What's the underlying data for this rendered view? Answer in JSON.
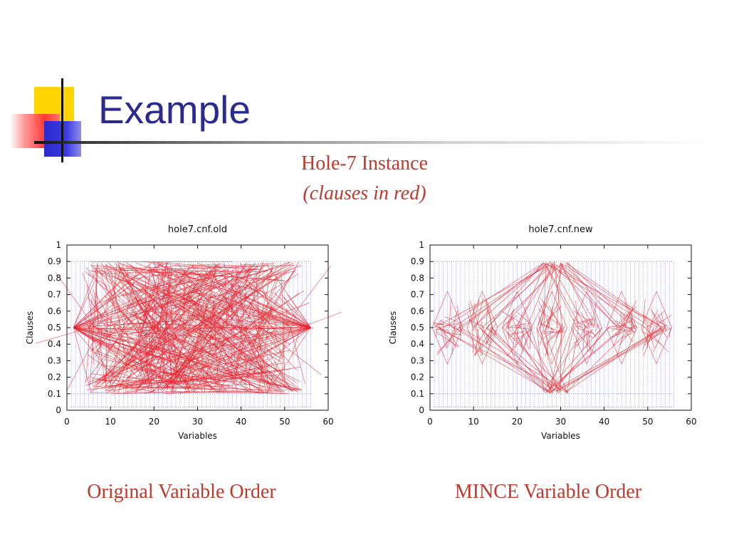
{
  "slide": {
    "title": "Example",
    "subtitle": "Hole-7 Instance",
    "subnote": "(clauses in red)",
    "left_caption": "Original Variable Order",
    "right_caption": "MINCE Variable Order"
  },
  "colors": {
    "title": "#2b2b8f",
    "caption": "#c0392b",
    "clauses": "#e8202a",
    "variables": "#3b3bd8"
  },
  "chart_data": [
    {
      "type": "line",
      "title": "hole7.cnf.old",
      "xlabel": "Variables",
      "ylabel": "Clauses",
      "xlim": [
        0,
        60
      ],
      "ylim": [
        0,
        1
      ],
      "xticks": [
        "0",
        "10",
        "20",
        "30",
        "40",
        "50",
        "60"
      ],
      "yticks": [
        "0",
        "0.1",
        "0.2",
        "0.3",
        "0.4",
        "0.5",
        "0.6",
        "0.7",
        "0.8",
        "0.9",
        "1"
      ],
      "variables_x_range": [
        1,
        56
      ],
      "clause_band": [
        0.1,
        0.9
      ],
      "edge_density": "high",
      "series": [
        {
          "values_description_x": [
            1,
            56
          ],
          "y": [
            0.1,
            0.9
          ]
        }
      ]
    },
    {
      "type": "line",
      "title": "hole7.cnf.new",
      "xlabel": "Variables",
      "ylabel": "Clauses",
      "xlim": [
        0,
        60
      ],
      "ylim": [
        0,
        1
      ],
      "xticks": [
        "0",
        "10",
        "20",
        "30",
        "40",
        "50",
        "60"
      ],
      "yticks": [
        "0",
        "0.1",
        "0.2",
        "0.3",
        "0.4",
        "0.5",
        "0.6",
        "0.7",
        "0.8",
        "0.9",
        "1"
      ],
      "variables_x_range": [
        1,
        56
      ],
      "clause_band": [
        0.1,
        0.9
      ],
      "cluster_centers_x": [
        4,
        12,
        20,
        28,
        36,
        44,
        52
      ],
      "cluster_width": 7,
      "hub_x": 29,
      "hub_y": [
        0.9,
        0.1
      ]
    }
  ]
}
